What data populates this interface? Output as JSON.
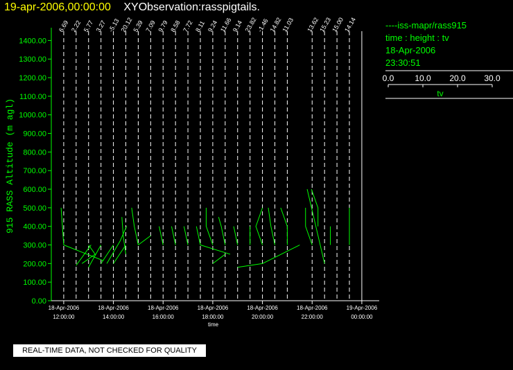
{
  "header": {
    "date": "19-apr-2006,00:00:00",
    "observation": "XYObservation:rasspigtails."
  },
  "legend": {
    "line_label": "iss-mapr/rass915",
    "line_dash": "----",
    "vars": "time : height : tv",
    "date": "18-Apr-2006",
    "time": "23:30:51",
    "scale_ticks": [
      "0.0",
      "10.0",
      "20.0",
      "30.0"
    ],
    "scale_label": "tv"
  },
  "notice": "REAL-TIME DATA, NOT CHECKED FOR QUALITY",
  "colors": {
    "series": "#00ff00",
    "axes": "#ffffff",
    "title": "#ffff00",
    "background": "#000000"
  },
  "chart_data": {
    "type": "line",
    "ylabel": "915 RASS Altitude (m agl)",
    "xlabel": "time",
    "ylim": [
      0,
      1450
    ],
    "xlim_hours": [
      11.5,
      24.7
    ],
    "yticks": [
      "0.00",
      "100.00",
      "200.00",
      "300.00",
      "400.00",
      "500.00",
      "600.00",
      "700.00",
      "800.00",
      "900.00",
      "1000.00",
      "1100.00",
      "1200.00",
      "1300.00",
      "1400.00"
    ],
    "xticks": [
      {
        "hour": 12,
        "date": "18-Apr-2006",
        "time": "12:00:00"
      },
      {
        "hour": 14,
        "date": "18-Apr-2006",
        "time": "14:00:00"
      },
      {
        "hour": 16,
        "date": "18-Apr-2006",
        "time": "16:00:00"
      },
      {
        "hour": 18,
        "date": "18-Apr-2006",
        "time": "18:00:00"
      },
      {
        "hour": 20,
        "date": "18-Apr-2006",
        "time": "20:00:00"
      },
      {
        "hour": 22,
        "date": "18-Apr-2006",
        "time": "22:00:00"
      },
      {
        "hour": 24,
        "date": "19-Apr-2006",
        "time": "00:00:00"
      }
    ],
    "profile_labels": [
      {
        "hour": 12.0,
        "label": "6.69"
      },
      {
        "hour": 12.5,
        "label": "2.22"
      },
      {
        "hour": 13.0,
        "label": "5.77"
      },
      {
        "hour": 13.5,
        "label": "3.27"
      },
      {
        "hour": 14.0,
        "label": "-5.13"
      },
      {
        "hour": 14.5,
        "label": "20.12"
      },
      {
        "hour": 15.0,
        "label": "5.39"
      },
      {
        "hour": 15.5,
        "label": "7.09"
      },
      {
        "hour": 16.0,
        "label": "9.79"
      },
      {
        "hour": 16.5,
        "label": "8.58"
      },
      {
        "hour": 17.0,
        "label": "7.72"
      },
      {
        "hour": 17.5,
        "label": "8.11"
      },
      {
        "hour": 18.0,
        "label": "9.24"
      },
      {
        "hour": 18.5,
        "label": "11.66"
      },
      {
        "hour": 19.0,
        "label": "9.14"
      },
      {
        "hour": 19.5,
        "label": "23.82"
      },
      {
        "hour": 20.0,
        "label": "-1.46"
      },
      {
        "hour": 20.5,
        "label": "14.82"
      },
      {
        "hour": 21.0,
        "label": "11.03"
      },
      {
        "hour": 22.0,
        "label": "13.62"
      },
      {
        "hour": 22.5,
        "label": "15.23"
      },
      {
        "hour": 23.0,
        "label": "15.00"
      },
      {
        "hour": 23.5,
        "label": "14.14"
      }
    ],
    "series": [
      {
        "tv_unit_hours": 0.053,
        "profiles": [
          {
            "hour": 12.0,
            "tv": [
              [
                0,
                300
              ],
              [
                -2,
                500
              ]
            ]
          },
          {
            "hour": 13.0,
            "tv": [
              [
                0,
                300
              ],
              [
                5,
                250
              ],
              [
                -5,
                200
              ]
            ]
          },
          {
            "hour": 14.0,
            "tv": [
              [
                -5,
                200
              ],
              [
                5,
                320
              ],
              [
                10,
                400
              ]
            ]
          },
          {
            "hour": 14.5,
            "tv": [
              [
                0,
                250
              ],
              [
                -2,
                350
              ],
              [
                -3,
                450
              ]
            ]
          },
          {
            "hour": 15.0,
            "tv": [
              [
                0,
                300
              ],
              [
                -3,
                400
              ],
              [
                -5,
                500
              ]
            ]
          },
          {
            "hour": 16.0,
            "tv": [
              [
                0,
                300
              ],
              [
                -3,
                400
              ]
            ]
          },
          {
            "hour": 16.5,
            "tv": [
              [
                0,
                300
              ],
              [
                -3,
                400
              ]
            ]
          },
          {
            "hour": 17.0,
            "tv": [
              [
                0,
                300
              ],
              [
                -3,
                400
              ]
            ]
          },
          {
            "hour": 17.5,
            "tv": [
              [
                0,
                300
              ],
              [
                -3,
                400
              ]
            ]
          },
          {
            "hour": 18.0,
            "tv": [
              [
                0,
                300
              ],
              [
                -5,
                400
              ],
              [
                -5,
                500
              ]
            ]
          },
          {
            "hour": 18.5,
            "tv": [
              [
                0,
                300
              ],
              [
                -3,
                400
              ],
              [
                -5,
                450
              ]
            ]
          },
          {
            "hour": 19.0,
            "tv": [
              [
                0,
                300
              ],
              [
                -3,
                400
              ]
            ]
          },
          {
            "hour": 19.5,
            "tv": [
              [
                0,
                300
              ],
              [
                0,
                400
              ]
            ]
          },
          {
            "hour": 20.0,
            "tv": [
              [
                0,
                300
              ],
              [
                -5,
                400
              ],
              [
                0,
                500
              ]
            ]
          },
          {
            "hour": 20.5,
            "tv": [
              [
                0,
                300
              ],
              [
                -3,
                400
              ],
              [
                -5,
                500
              ]
            ]
          },
          {
            "hour": 21.0,
            "tv": [
              [
                0,
                300
              ],
              [
                0,
                400
              ],
              [
                -5,
                500
              ]
            ]
          },
          {
            "hour": 22.0,
            "tv": [
              [
                0,
                300
              ],
              [
                -5,
                400
              ],
              [
                -5,
                500
              ]
            ]
          },
          {
            "hour": 22.5,
            "tv": [
              [
                -5,
                400
              ],
              [
                -5,
                500
              ],
              [
                -10,
                600
              ]
            ]
          },
          {
            "hour": 23.0,
            "tv": [
              [
                -5,
                300
              ],
              [
                -5,
                400
              ]
            ]
          },
          {
            "hour": 23.5,
            "tv": [
              [
                0,
                300
              ],
              [
                0,
                500
              ]
            ]
          }
        ],
        "lines": [
          [
            [
              12.0,
              300
            ],
            [
              13.6,
              215
            ]
          ],
          [
            [
              12.5,
              190
            ],
            [
              13.1,
              300
            ]
          ],
          [
            [
              13.0,
              180
            ],
            [
              13.5,
              300
            ]
          ],
          [
            [
              13.5,
              200
            ],
            [
              14.0,
              300
            ]
          ],
          [
            [
              14.0,
              200
            ],
            [
              14.5,
              300
            ]
          ],
          [
            [
              15.0,
              300
            ],
            [
              15.5,
              350
            ]
          ],
          [
            [
              17.5,
              300
            ],
            [
              18.7,
              250
            ]
          ],
          [
            [
              18.0,
              200
            ],
            [
              18.5,
              250
            ]
          ],
          [
            [
              19.0,
              180
            ],
            [
              20.0,
              200
            ]
          ],
          [
            [
              20.0,
              200
            ],
            [
              21.5,
              300
            ]
          ],
          [
            [
              21.8,
              600
            ],
            [
              22.5,
              200
            ]
          ]
        ]
      }
    ]
  }
}
